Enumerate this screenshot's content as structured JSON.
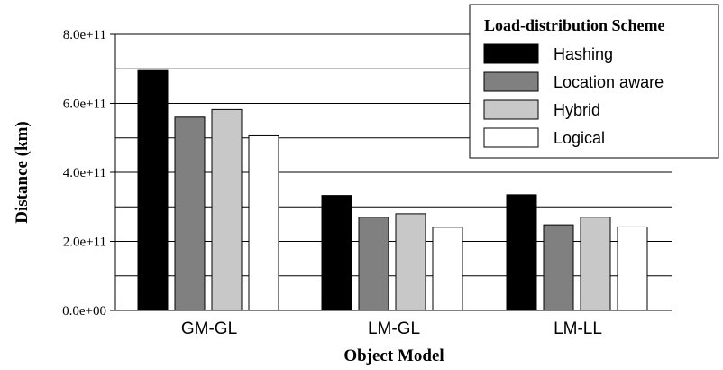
{
  "chart_data": {
    "type": "bar",
    "title": "",
    "xlabel": "Object Model",
    "ylabel": "Distance (km)",
    "categories": [
      "GM-GL",
      "LM-GL",
      "LM-LL"
    ],
    "ylim": [
      0,
      800000000000
    ],
    "yticks": [
      {
        "value": 0,
        "label": "0.0e+00"
      },
      {
        "value": 200000000000,
        "label": "2.0e+11"
      },
      {
        "value": 400000000000,
        "label": "4.0e+11"
      },
      {
        "value": 600000000000,
        "label": "6.0e+11"
      },
      {
        "value": 800000000000,
        "label": "8.0e+11"
      }
    ],
    "grid": "horizontal lines every 1.0e+11",
    "legend_title": "Load-distribution Scheme",
    "legend_position": "top-right",
    "series": [
      {
        "name": "Hashing",
        "color": "#000000",
        "values": [
          695000000000,
          333000000000,
          335000000000
        ]
      },
      {
        "name": "Location aware",
        "color": "#808080",
        "values": [
          560000000000,
          270000000000,
          248000000000
        ]
      },
      {
        "name": "Hybrid",
        "color": "#c8c8c8",
        "values": [
          582000000000,
          280000000000,
          270000000000
        ]
      },
      {
        "name": "Logical",
        "color": "#ffffff",
        "values": [
          506000000000,
          241000000000,
          242000000000
        ]
      }
    ]
  }
}
